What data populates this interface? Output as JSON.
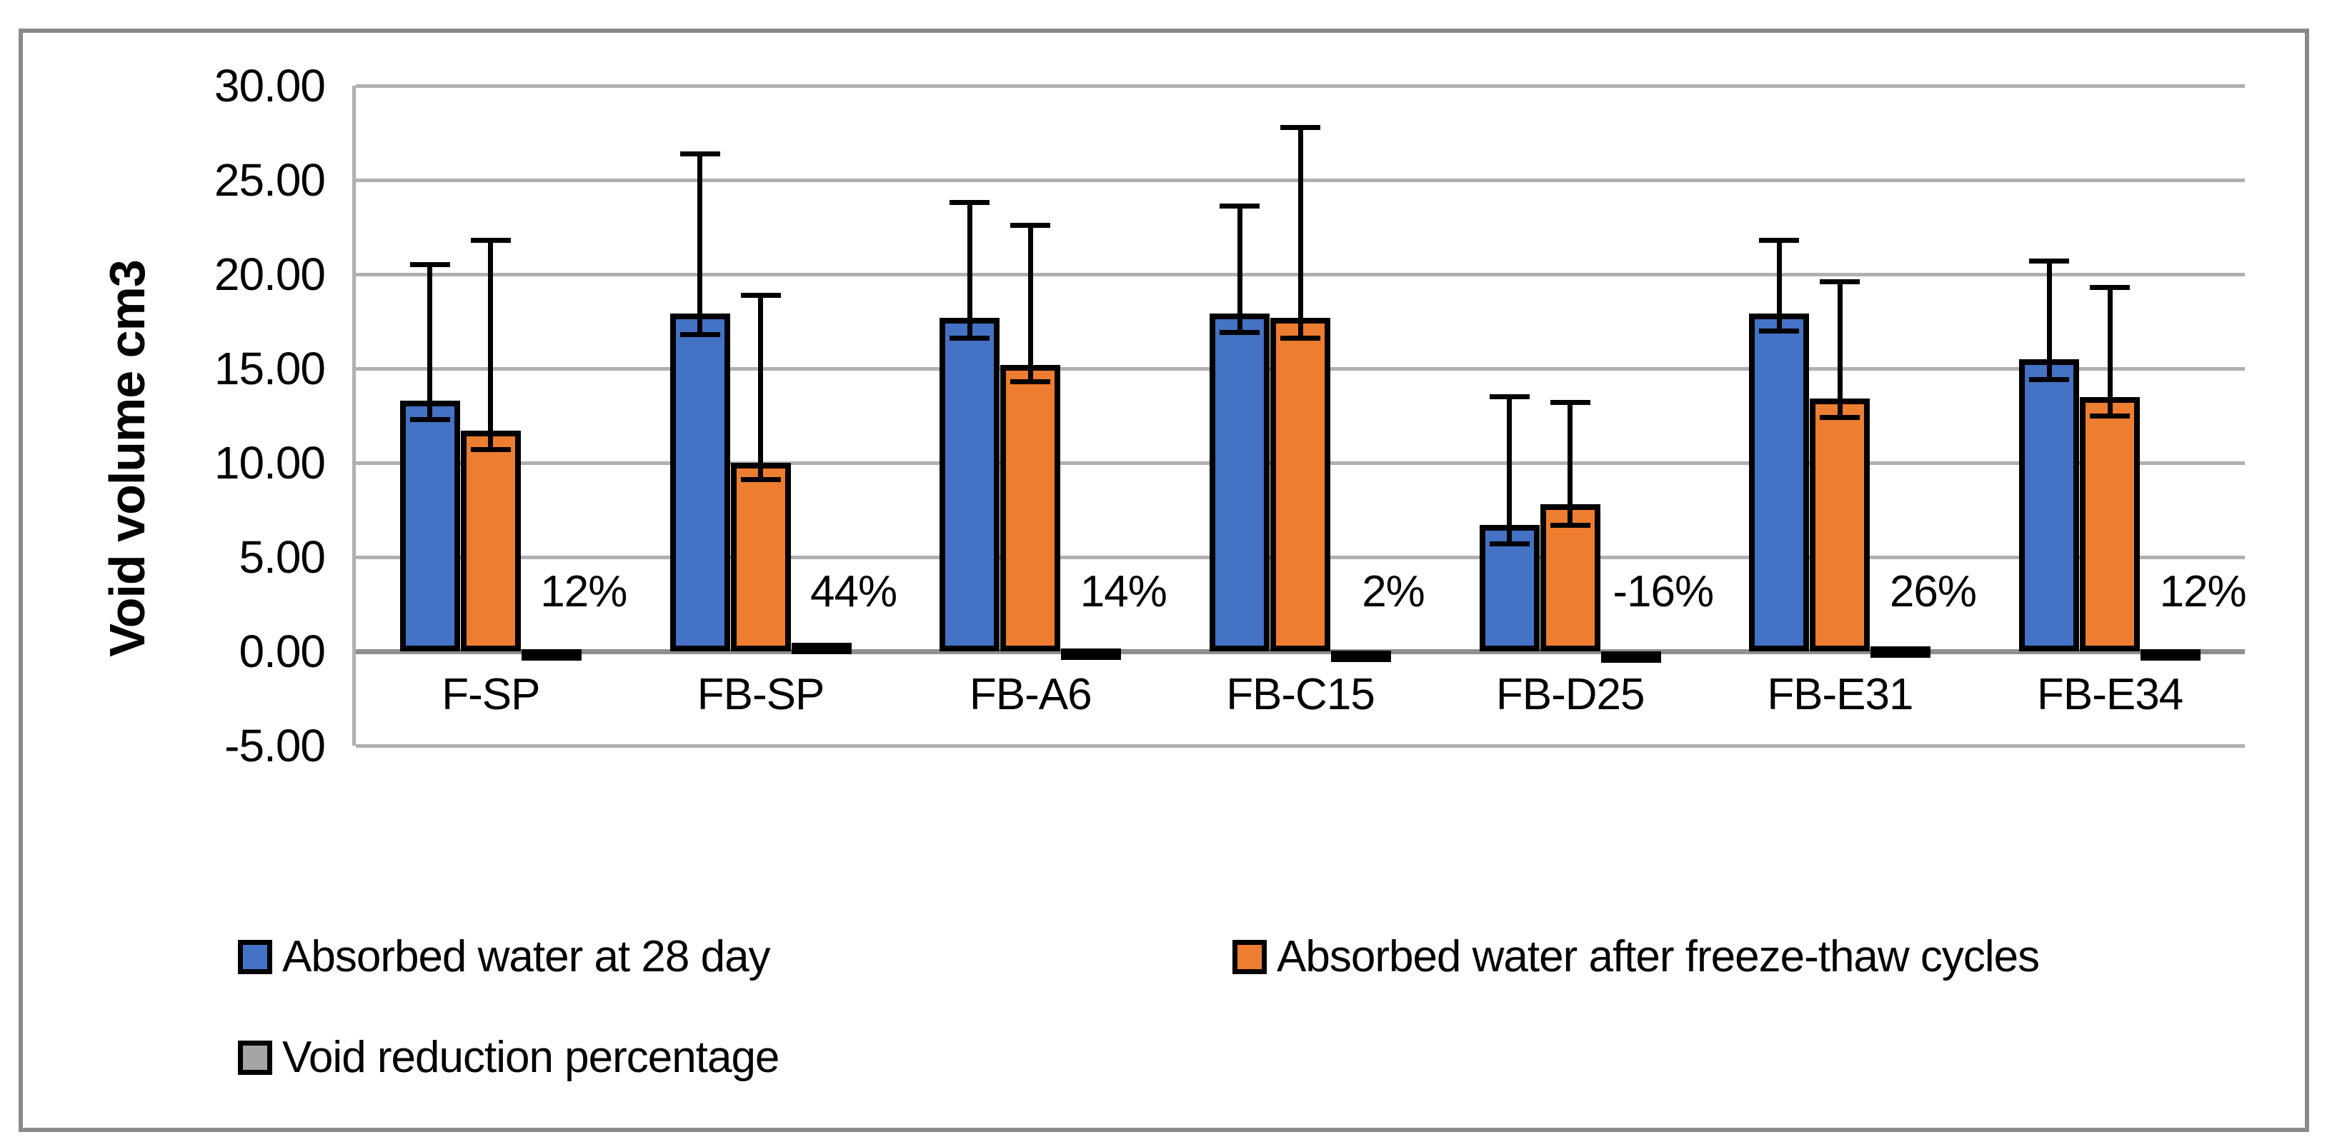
{
  "figure": {
    "background_color": "#ffffff",
    "border_color": "#8a8a8a"
  },
  "chart_data": {
    "type": "bar",
    "title": "",
    "xlabel": "",
    "ylabel": "Void volume cm3",
    "ylim": [
      -5,
      30
    ],
    "ytick_step": 5,
    "ytick_labels": [
      "30.00",
      "25.00",
      "20.00",
      "15.00",
      "10.00",
      "5.00",
      "0.00",
      "-5.00"
    ],
    "ytick_values": [
      30,
      25,
      20,
      15,
      10,
      5,
      0,
      -5
    ],
    "grid": true,
    "gridline_color": "#b0b0b0",
    "axis_line_color": "#8f8f8f",
    "legend_position": "bottom",
    "categories": [
      "F-SP",
      "FB-SP",
      "FB-A6",
      "FB-C15",
      "FB-D25",
      "FB-E31",
      "FB-E34"
    ],
    "series": [
      {
        "name": "Absorbed water at 28 day",
        "color": "#4472C4",
        "outline_color": "#000000",
        "values": [
          13.3,
          17.9,
          17.7,
          17.9,
          6.7,
          17.9,
          15.5
        ],
        "error_low": [
          12.3,
          16.8,
          16.6,
          16.9,
          5.7,
          17.0,
          14.4
        ],
        "error_high": [
          20.5,
          26.4,
          23.8,
          23.6,
          13.5,
          21.8,
          20.7
        ]
      },
      {
        "name": "Absorbed water after freeze-thaw cycles",
        "color": "#ED7D31",
        "outline_color": "#000000",
        "values": [
          11.7,
          10.0,
          15.2,
          17.7,
          7.8,
          13.4,
          13.5
        ],
        "error_low": [
          10.7,
          9.1,
          14.3,
          16.6,
          6.7,
          12.4,
          12.5
        ],
        "error_high": [
          21.8,
          18.9,
          22.6,
          27.8,
          13.2,
          19.6,
          19.3
        ]
      },
      {
        "name": "Void reduction percentage",
        "color": "#A5A5A5",
        "outline_color": "#000000",
        "values": [
          0.12,
          0.44,
          0.14,
          0.02,
          -0.16,
          0.26,
          0.12
        ]
      }
    ],
    "data_labels": [
      "12%",
      "44%",
      "14%",
      "2%",
      "-16%",
      "26%",
      "12%"
    ]
  }
}
